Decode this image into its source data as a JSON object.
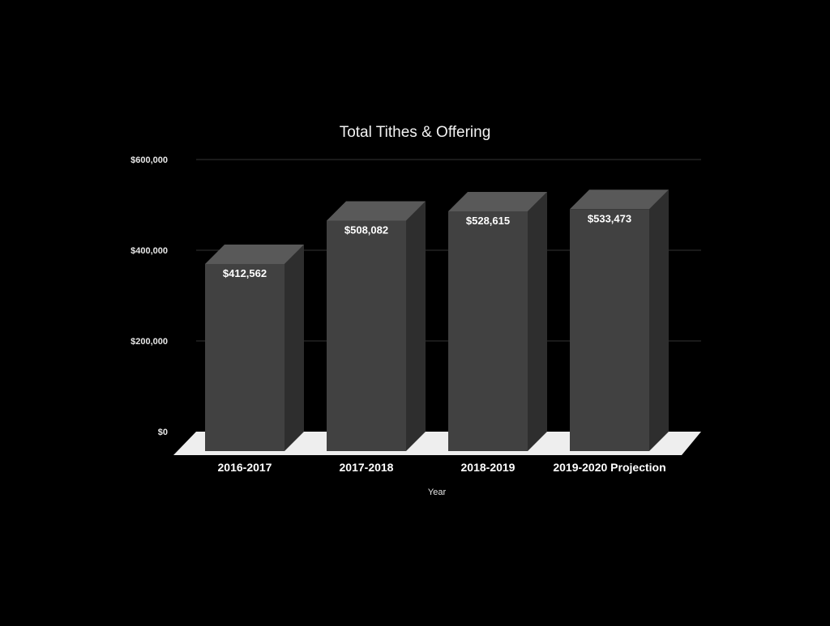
{
  "chart_data": {
    "type": "bar",
    "title": "Total Tithes & Offering",
    "xlabel": "Year",
    "ylabel": "",
    "categories": [
      "2016-2017",
      "2017-2018",
      "2018-2019",
      "2019-2020 Projection"
    ],
    "values": [
      412562,
      508082,
      528615,
      533473
    ],
    "data_labels": [
      "$412,562",
      "$508,082",
      "$528,615",
      "$533,473"
    ],
    "yticks": [
      0,
      200000,
      400000,
      600000
    ],
    "ytick_labels": [
      "$0",
      "$200,000",
      "$400,000",
      "$600,000"
    ],
    "ylim": [
      0,
      600000
    ],
    "grid": true,
    "legend": "none",
    "style": "3d-column"
  },
  "colors": {
    "background": "#000000",
    "bar_front": "#414141",
    "bar_top": "#595959",
    "bar_side": "#2e2e2e",
    "floor": "#eeeeee",
    "gridline": "#333333"
  }
}
